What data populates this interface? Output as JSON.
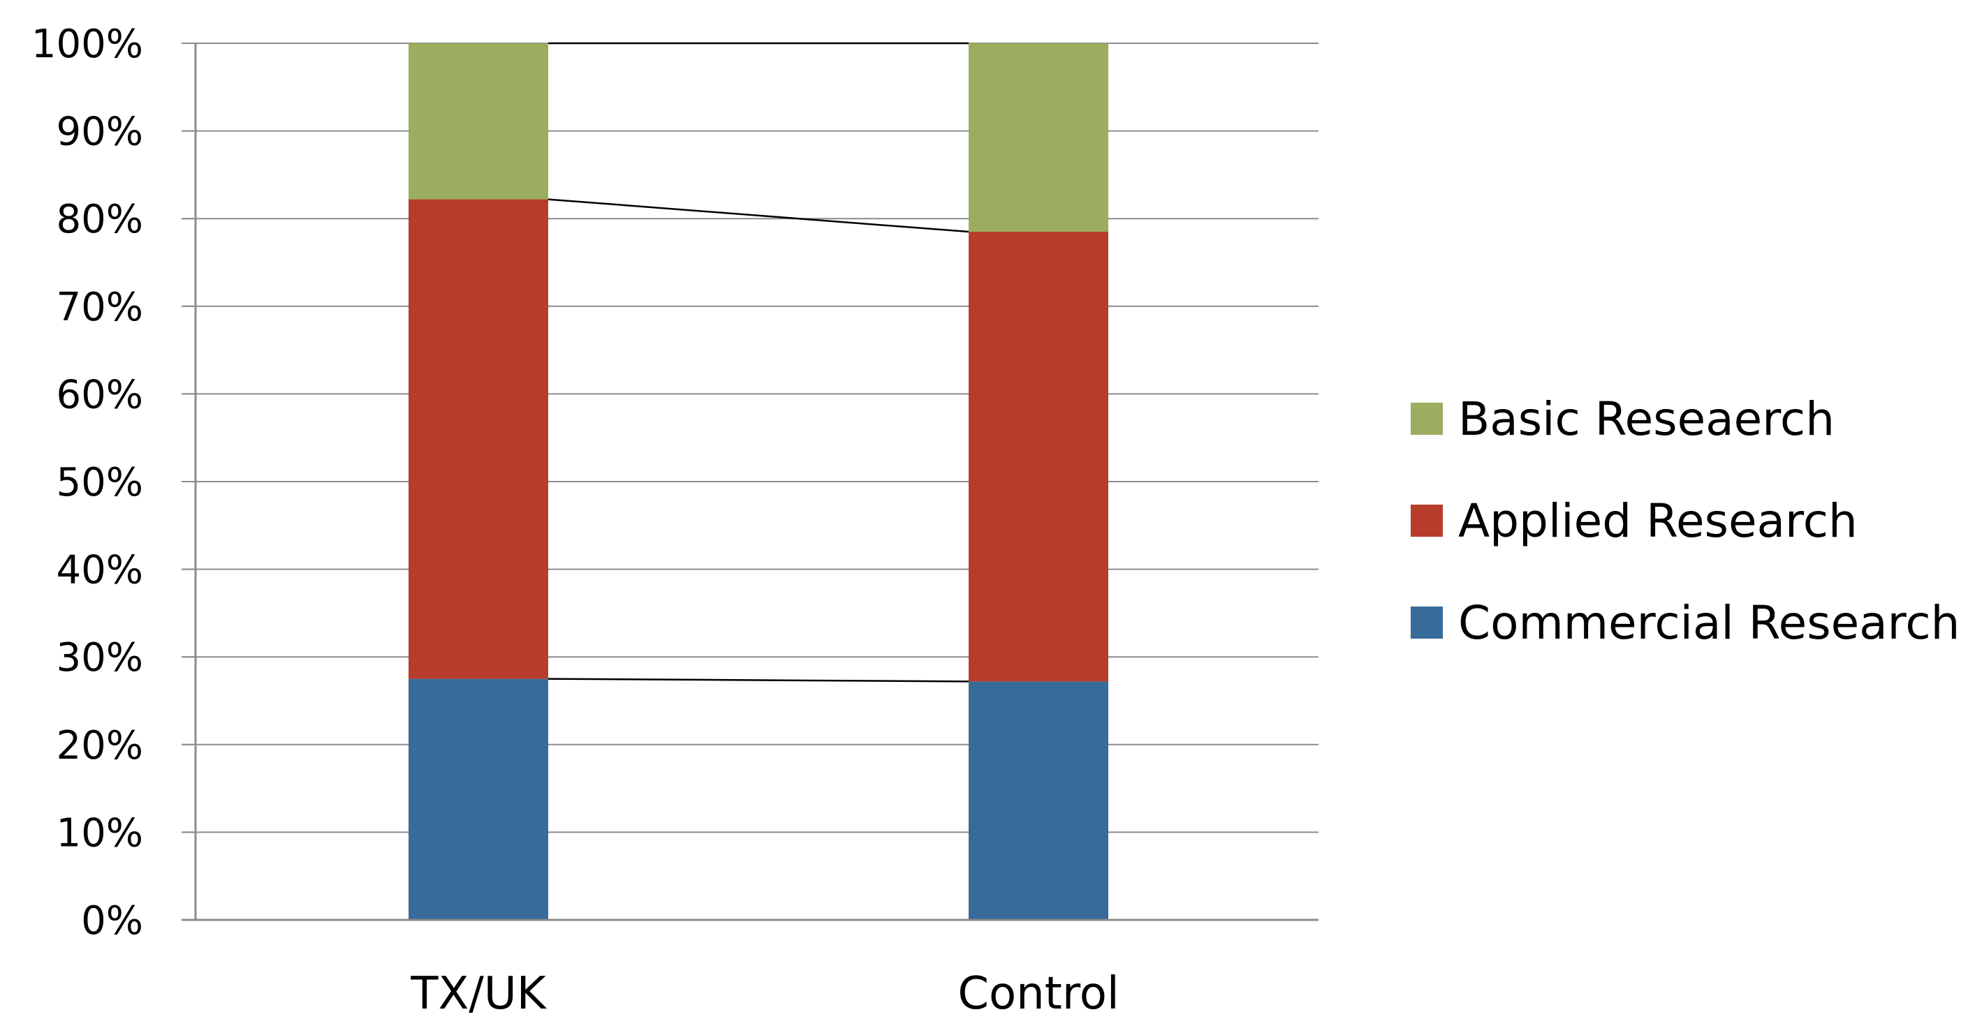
{
  "chart_data": {
    "type": "bar",
    "stacked": true,
    "percent_stacked": true,
    "categories": [
      "TX/UK",
      "Control"
    ],
    "series": [
      {
        "name": "Commercial Research",
        "color": "#376B9A",
        "values": [
          27.5,
          27.2
        ]
      },
      {
        "name": "Applied Research",
        "color": "#B83C2B",
        "values": [
          54.7,
          51.3
        ]
      },
      {
        "name": "Basic Reseaerch",
        "color": "#9BAD5E",
        "values": [
          17.8,
          21.5
        ]
      }
    ],
    "legend_order": [
      "Basic Reseaerch",
      "Applied Research",
      "Commercial Research"
    ],
    "legend_position": "right",
    "yticks": [
      "0%",
      "10%",
      "20%",
      "30%",
      "40%",
      "50%",
      "60%",
      "70%",
      "80%",
      "90%",
      "100%"
    ],
    "ylim": [
      0,
      100
    ],
    "grid": true,
    "series_lines": true,
    "title": "",
    "xlabel": "",
    "ylabel": ""
  }
}
